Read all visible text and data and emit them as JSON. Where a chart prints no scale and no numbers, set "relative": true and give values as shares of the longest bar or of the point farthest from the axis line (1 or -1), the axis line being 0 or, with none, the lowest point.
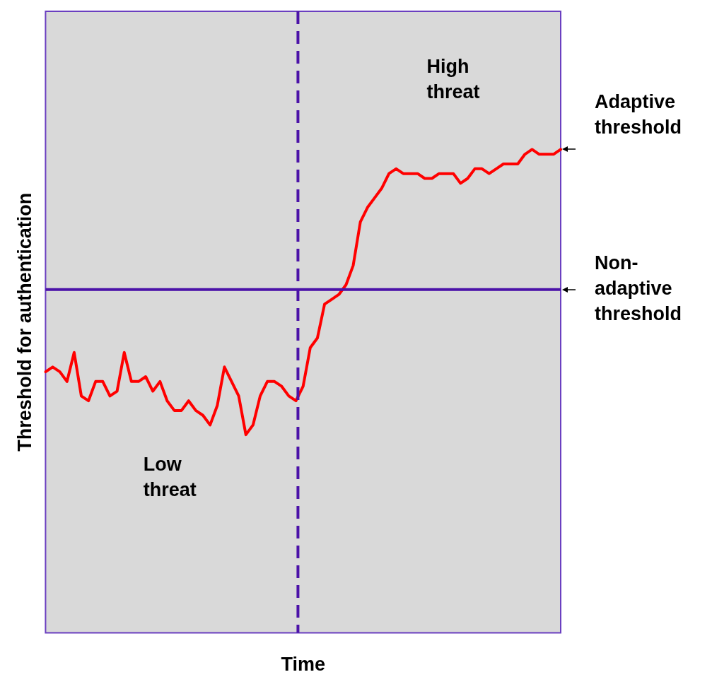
{
  "chart_data": {
    "type": "line",
    "relative": true,
    "xlabel": "Time",
    "ylabel": "Threshold for authentication",
    "categories": [
      null,
      null,
      null,
      null,
      null,
      null,
      null,
      null,
      null,
      null,
      null,
      null,
      null,
      null,
      null,
      null,
      null,
      null,
      null,
      null,
      null,
      null,
      null,
      null,
      null,
      null,
      null,
      null,
      null,
      null,
      null,
      null,
      null,
      null,
      null,
      null,
      null,
      null,
      null,
      null,
      null,
      null,
      null,
      null,
      null,
      null,
      null,
      null,
      null,
      null,
      null,
      null,
      null,
      null,
      null,
      null,
      null,
      null,
      null,
      null,
      null,
      null,
      null,
      null,
      null,
      null,
      null,
      null,
      null,
      null,
      null,
      null,
      null
    ],
    "series": [
      {
        "name": "Adaptive threshold",
        "color": "#ff0000",
        "values": [
          0.54,
          0.55,
          0.54,
          0.52,
          0.58,
          0.49,
          0.48,
          0.52,
          0.52,
          0.49,
          0.5,
          0.58,
          0.52,
          0.52,
          0.53,
          0.5,
          0.52,
          0.48,
          0.46,
          0.46,
          0.48,
          0.46,
          0.45,
          0.43,
          0.47,
          0.55,
          0.52,
          0.49,
          0.41,
          0.43,
          0.49,
          0.52,
          0.52,
          0.51,
          0.49,
          0.48,
          0.51,
          0.59,
          0.61,
          0.68,
          0.69,
          0.7,
          0.72,
          0.76,
          0.85,
          0.88,
          0.9,
          0.92,
          0.95,
          0.96,
          0.95,
          0.95,
          0.95,
          0.94,
          0.94,
          0.95,
          0.95,
          0.95,
          0.93,
          0.94,
          0.96,
          0.96,
          0.95,
          0.96,
          0.97,
          0.97,
          0.97,
          0.99,
          1.0,
          0.99,
          0.99,
          0.99,
          1.0
        ]
      }
    ],
    "ref_lines": [
      {
        "axis": "y",
        "value": 0.71,
        "label": "Non-adaptive threshold",
        "color": "#4b12a8",
        "line_style": "solid"
      }
    ],
    "annotations": [
      "High threat",
      "Low threat"
    ],
    "legend": false,
    "tick_labels": false,
    "marker": "none",
    "line_style": "solid"
  }
}
